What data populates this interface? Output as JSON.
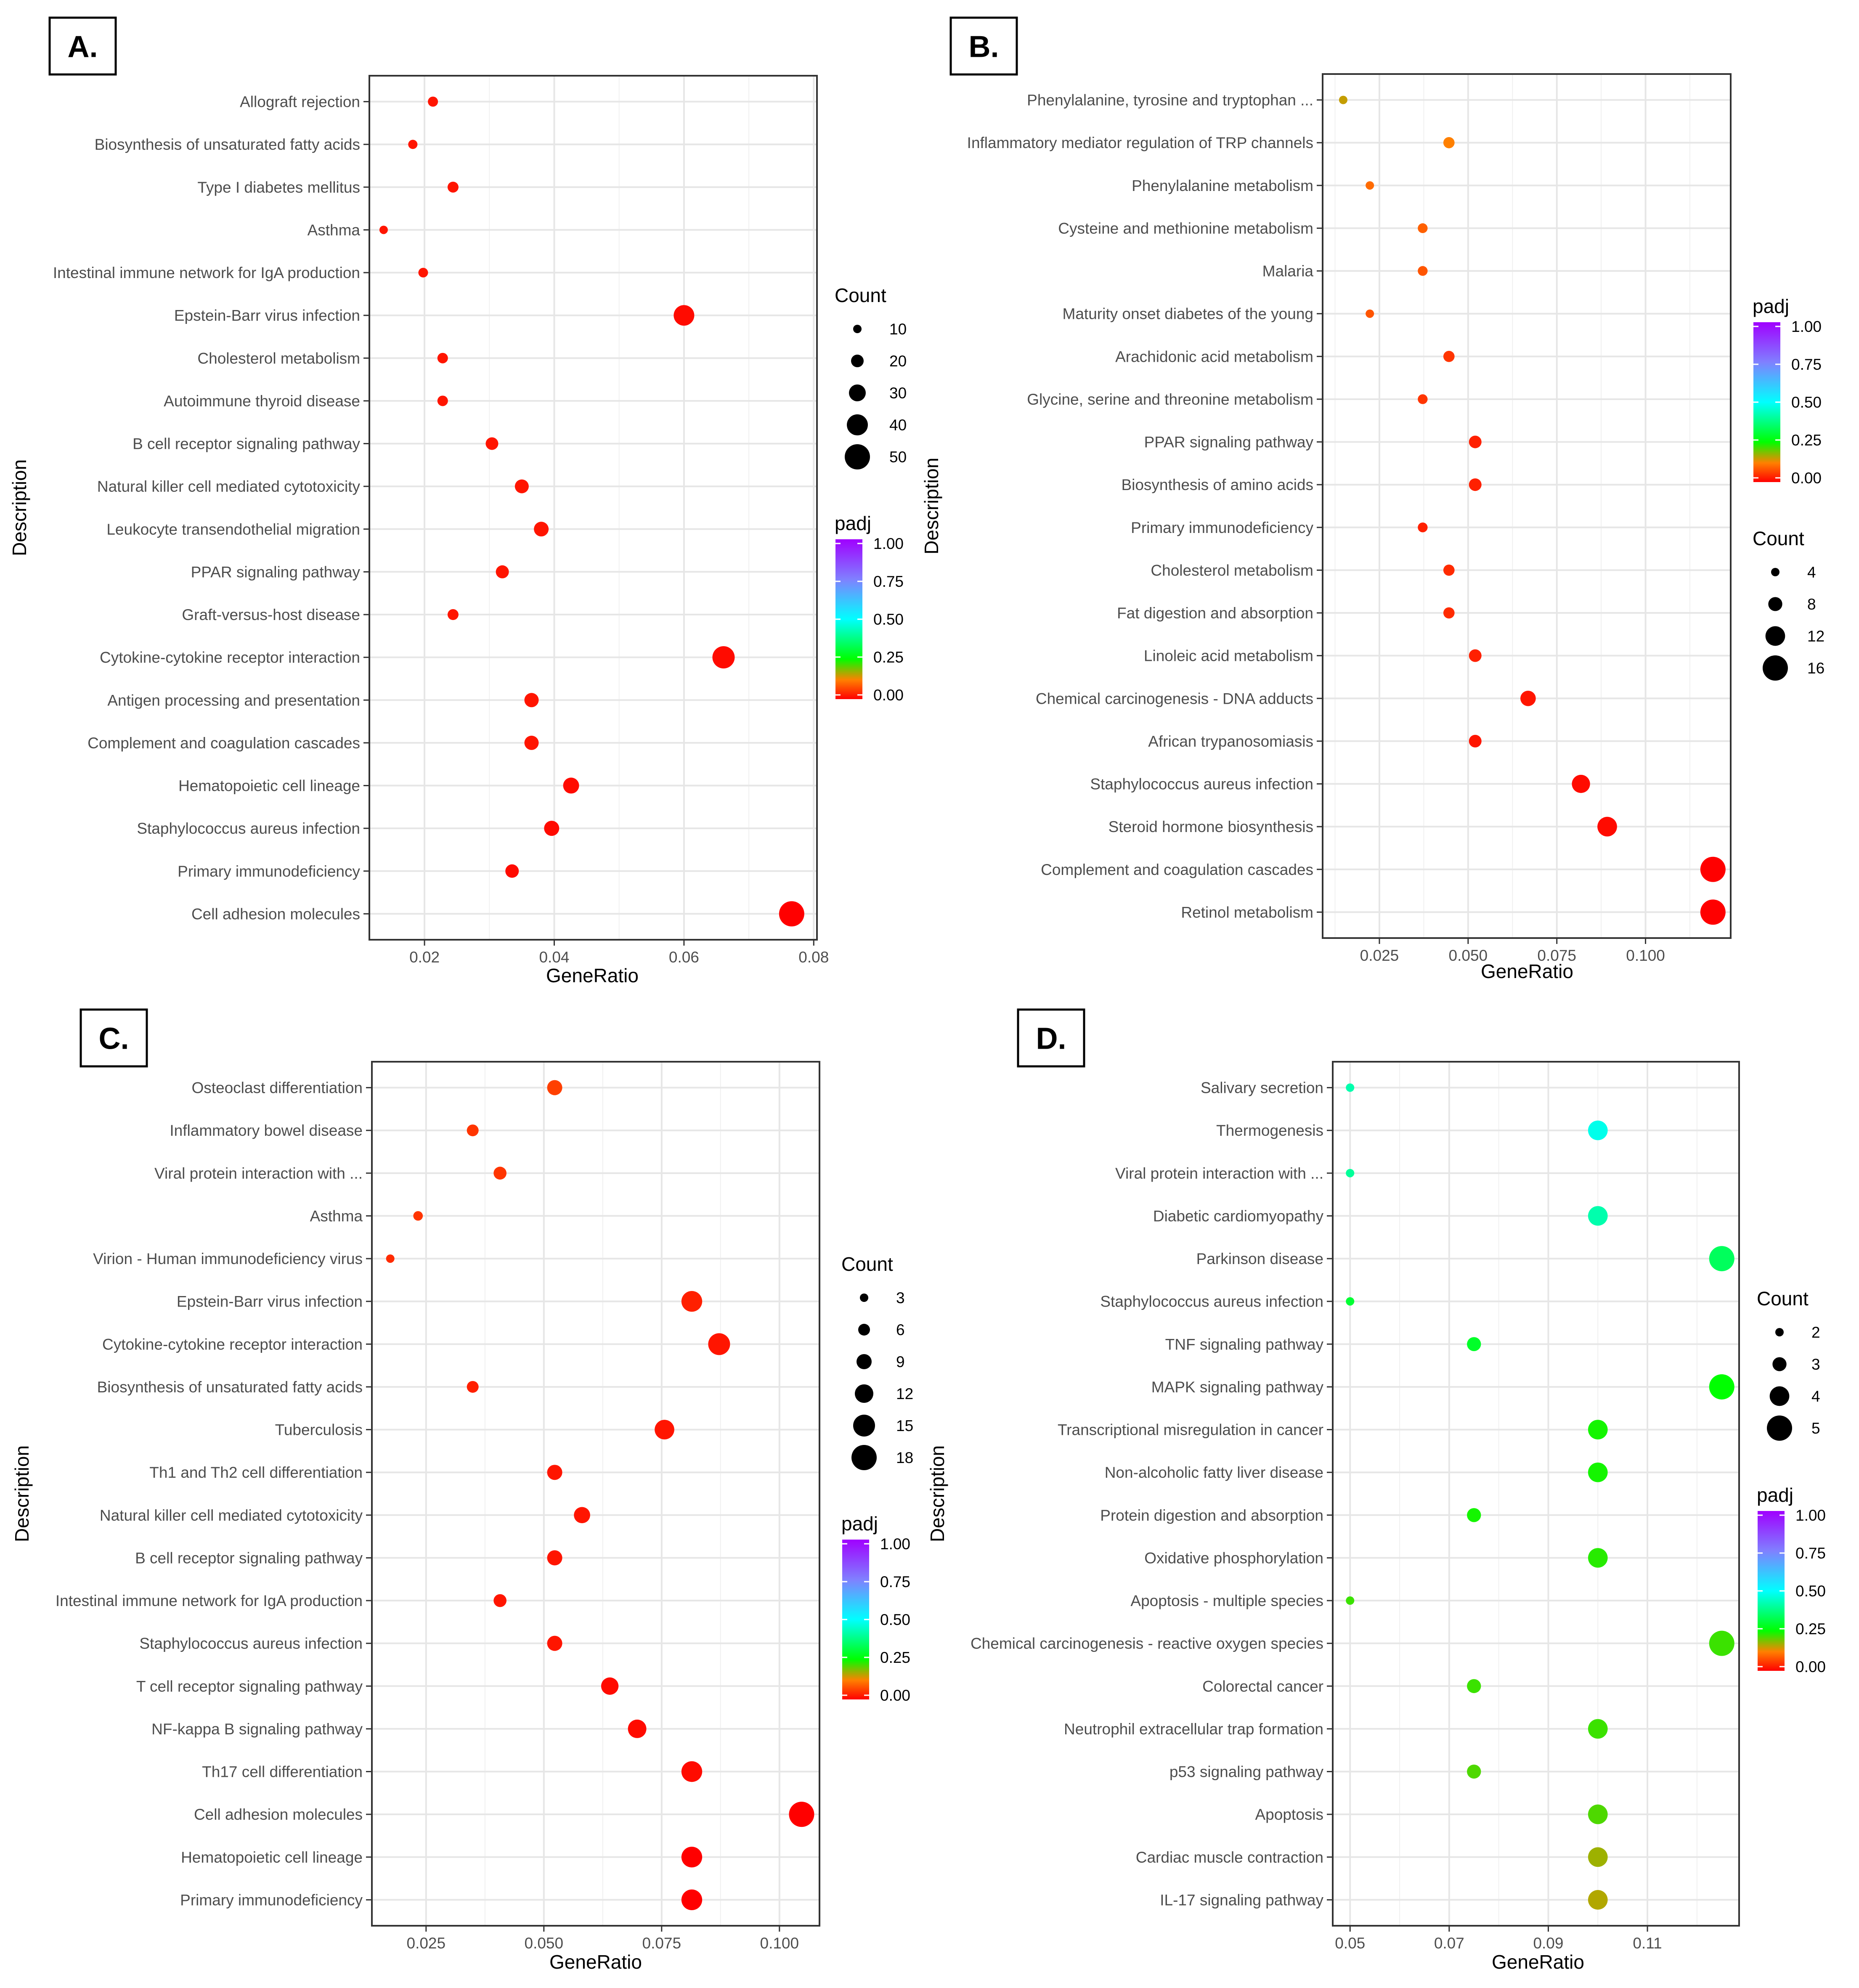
{
  "chart_data": [
    {
      "type": "scatter",
      "panel_label": "A.",
      "xlabel": "GeneRatio",
      "ylabel": "Description",
      "xlim": [
        0.0115,
        0.0805
      ],
      "xticks": [
        0.02,
        0.04,
        0.06,
        0.08
      ],
      "xtick_labels": [
        "0.02",
        "0.04",
        "0.06",
        "0.08"
      ],
      "grid": true,
      "size_legend": {
        "title": "Count",
        "values": [
          10,
          20,
          30,
          40,
          50
        ],
        "labels": [
          "10",
          "20",
          "30",
          "40",
          "50"
        ]
      },
      "color_legend": {
        "title": "padj",
        "range": [
          0,
          1
        ],
        "labels": [
          "1.00",
          "0.75",
          "0.50",
          "0.25",
          "0.00"
        ]
      },
      "categories": [
        "Allograft rejection",
        "Biosynthesis of unsaturated fatty acids",
        "Type I diabetes mellitus",
        "Asthma",
        "Intestinal immune network for IgA production",
        "Epstein-Barr virus infection",
        "Cholesterol metabolism",
        "Autoimmune thyroid disease",
        "B cell receptor signaling pathway",
        "Natural killer cell mediated cytotoxicity",
        "Leukocyte transendothelial migration",
        "PPAR signaling pathway",
        "Graft-versus-host disease",
        "Cytokine-cytokine receptor interaction",
        "Antigen processing and presentation",
        "Complement and coagulation cascades",
        "Hematopoietic cell lineage",
        "Staphylococcus aureus infection",
        "Primary immunodeficiency",
        "Cell adhesion molecules"
      ],
      "x": [
        0.0213,
        0.0182,
        0.0244,
        0.0137,
        0.0198,
        0.06,
        0.0228,
        0.0228,
        0.0304,
        0.035,
        0.038,
        0.032,
        0.0244,
        0.0661,
        0.0365,
        0.0365,
        0.0426,
        0.0396,
        0.0335,
        0.0766
      ],
      "count": [
        14,
        12,
        16,
        9,
        13,
        39,
        15,
        15,
        20,
        23,
        25,
        21,
        16,
        43,
        24,
        24,
        28,
        26,
        22,
        50
      ],
      "padj": [
        0.02,
        0.02,
        0.02,
        0.02,
        0.02,
        0.01,
        0.02,
        0.02,
        0.02,
        0.02,
        0.02,
        0.02,
        0.02,
        0.01,
        0.02,
        0.02,
        0.01,
        0.01,
        0.01,
        0.0
      ]
    },
    {
      "type": "scatter",
      "panel_label": "B.",
      "xlabel": "GeneRatio",
      "ylabel": "Description",
      "xlim": [
        0.009,
        0.124
      ],
      "xticks": [
        0.025,
        0.05,
        0.075,
        0.1
      ],
      "xtick_labels": [
        "0.025",
        "0.050",
        "0.075",
        "0.100"
      ],
      "grid": true,
      "size_legend": {
        "title": "Count",
        "values": [
          4,
          8,
          12,
          16
        ],
        "labels": [
          "4",
          "8",
          "12",
          "16"
        ]
      },
      "color_legend": {
        "title": "padj",
        "range": [
          0,
          1
        ],
        "labels": [
          "1.00",
          "0.75",
          "0.50",
          "0.25",
          "0.00"
        ]
      },
      "categories": [
        "Phenylalanine, tyrosine and tryptophan ...",
        "Inflammatory mediator regulation of TRP channels",
        "Phenylalanine metabolism",
        "Cysteine and methionine metabolism",
        "Malaria",
        "Maturity onset diabetes of the young",
        "Arachidonic acid metabolism",
        "Glycine, serine and threonine metabolism",
        "PPAR signaling pathway",
        "Biosynthesis of amino acids",
        "Primary immunodeficiency",
        "Cholesterol metabolism",
        "Fat digestion and absorption",
        "Linoleic acid metabolism",
        "Chemical carcinogenesis - DNA adducts",
        "African trypanosomiasis",
        "Staphylococcus aureus infection",
        "Steroid hormone biosynthesis",
        "Complement and coagulation cascades",
        "Retinol metabolism"
      ],
      "x": [
        0.0148,
        0.0446,
        0.0223,
        0.0372,
        0.0372,
        0.0223,
        0.0446,
        0.0372,
        0.052,
        0.052,
        0.0372,
        0.0446,
        0.0446,
        0.052,
        0.0669,
        0.052,
        0.0818,
        0.0892,
        0.119,
        0.119
      ],
      "count": [
        2,
        6,
        3,
        5,
        5,
        3,
        6,
        5,
        7,
        7,
        5,
        6,
        6,
        7,
        9,
        7,
        11,
        12,
        16,
        16
      ],
      "padj": [
        0.15,
        0.12,
        0.1,
        0.09,
        0.08,
        0.08,
        0.05,
        0.05,
        0.03,
        0.03,
        0.03,
        0.04,
        0.04,
        0.03,
        0.02,
        0.02,
        0.01,
        0.01,
        0.0,
        0.0
      ]
    },
    {
      "type": "scatter",
      "panel_label": "C.",
      "xlabel": "GeneRatio",
      "ylabel": "Description",
      "xlim": [
        0.0135,
        0.1085
      ],
      "xticks": [
        0.025,
        0.05,
        0.075,
        0.1
      ],
      "xtick_labels": [
        "0.025",
        "0.050",
        "0.075",
        "0.100"
      ],
      "grid": true,
      "size_legend": {
        "title": "Count",
        "values": [
          3,
          6,
          9,
          12,
          15,
          18
        ],
        "labels": [
          "3",
          "6",
          "9",
          "12",
          "15",
          "18"
        ]
      },
      "color_legend": {
        "title": "padj",
        "range": [
          0,
          1
        ],
        "labels": [
          "1.00",
          "0.75",
          "0.50",
          "0.25",
          "0.00"
        ]
      },
      "categories": [
        "Osteoclast differentiation",
        "Inflammatory bowel disease",
        "Viral protein interaction with ...",
        "Asthma",
        "Virion - Human immunodeficiency virus",
        "Epstein-Barr virus infection",
        "Cytokine-cytokine receptor interaction",
        "Biosynthesis of unsaturated fatty acids",
        "Tuberculosis",
        "Th1 and Th2 cell differentiation",
        "Natural killer cell mediated cytotoxicity",
        "B cell receptor signaling pathway",
        "Intestinal immune network for IgA production",
        "Staphylococcus aureus infection",
        "T cell receptor signaling pathway",
        "NF-kappa B signaling pathway",
        "Th17 cell differentiation",
        "Cell adhesion molecules",
        "Hematopoietic cell lineage",
        "Primary immunodeficiency"
      ],
      "x": [
        0.0523,
        0.0349,
        0.0407,
        0.0233,
        0.0174,
        0.0814,
        0.0872,
        0.0349,
        0.0756,
        0.0523,
        0.0581,
        0.0523,
        0.0407,
        0.0523,
        0.064,
        0.0698,
        0.0814,
        0.1047,
        0.0814,
        0.0814
      ],
      "count": [
        9,
        6,
        7,
        4,
        3,
        14,
        15,
        6,
        13,
        9,
        10,
        9,
        7,
        9,
        11,
        12,
        14,
        18,
        14,
        14
      ],
      "padj": [
        0.06,
        0.05,
        0.05,
        0.05,
        0.04,
        0.03,
        0.02,
        0.03,
        0.02,
        0.02,
        0.02,
        0.02,
        0.02,
        0.02,
        0.01,
        0.01,
        0.01,
        0.0,
        0.0,
        0.0
      ]
    },
    {
      "type": "scatter",
      "panel_label": "D.",
      "xlabel": "GeneRatio",
      "ylabel": "Description",
      "xlim": [
        0.0465,
        0.1285
      ],
      "xticks": [
        0.05,
        0.07,
        0.09,
        0.11
      ],
      "xtick_labels": [
        "0.05",
        "0.07",
        "0.09",
        "0.11"
      ],
      "grid": true,
      "size_legend": {
        "title": "Count",
        "values": [
          2,
          3,
          4,
          5
        ],
        "labels": [
          "2",
          "3",
          "4",
          "5"
        ]
      },
      "color_legend": {
        "title": "padj",
        "range": [
          0,
          1
        ],
        "labels": [
          "1.00",
          "0.75",
          "0.50",
          "0.25",
          "0.00"
        ]
      },
      "categories": [
        "Salivary secretion",
        "Thermogenesis",
        "Viral protein interaction with ...",
        "Diabetic cardiomyopathy",
        "Parkinson disease",
        "Staphylococcus aureus infection",
        "TNF signaling pathway",
        "MAPK signaling pathway",
        "Transcriptional misregulation in cancer",
        "Non-alcoholic fatty liver disease",
        "Protein digestion and absorption",
        "Oxidative phosphorylation",
        "Apoptosis - multiple species",
        "Chemical carcinogenesis - reactive oxygen species",
        "Colorectal cancer",
        "Neutrophil extracellular trap formation",
        "p53 signaling pathway",
        "Apoptosis",
        "Cardiac muscle contraction",
        "IL-17 signaling pathway"
      ],
      "x": [
        0.05,
        0.1,
        0.05,
        0.1,
        0.125,
        0.05,
        0.075,
        0.125,
        0.1,
        0.1,
        0.075,
        0.1,
        0.05,
        0.125,
        0.075,
        0.1,
        0.075,
        0.1,
        0.1,
        0.1
      ],
      "count": [
        2,
        4,
        2,
        4,
        5,
        2,
        3,
        5,
        4,
        4,
        3,
        4,
        2,
        5,
        3,
        4,
        3,
        4,
        4,
        4
      ],
      "padj": [
        0.42,
        0.48,
        0.4,
        0.42,
        0.34,
        0.3,
        0.29,
        0.25,
        0.24,
        0.24,
        0.24,
        0.23,
        0.22,
        0.22,
        0.22,
        0.22,
        0.21,
        0.21,
        0.17,
        0.16
      ]
    }
  ]
}
